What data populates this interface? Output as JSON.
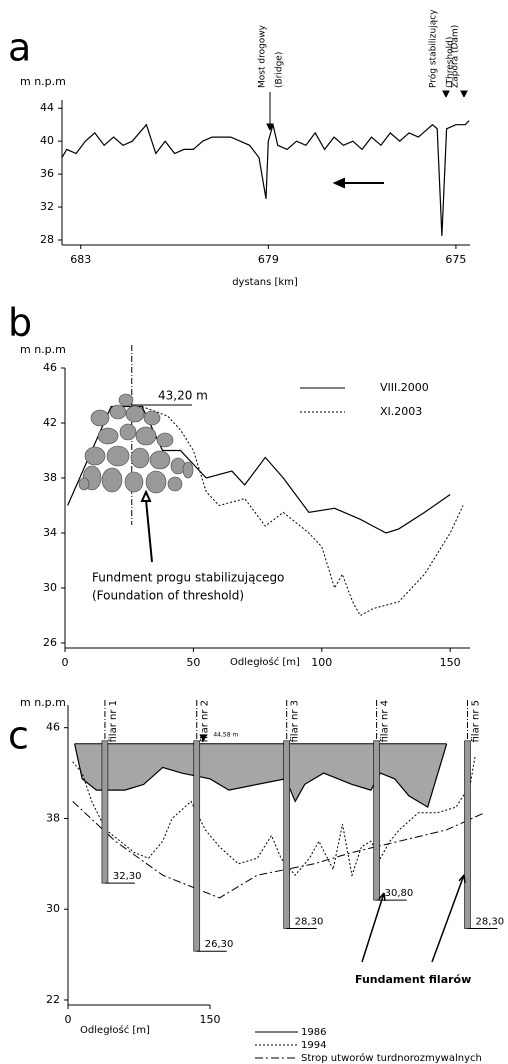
{
  "chart_data": [
    {
      "type": "line",
      "panel_label": "a",
      "y_label": "m  n.p.m",
      "x_label": "dystans  [km]",
      "xlim": [
        683.4,
        674.7
      ],
      "xticks": [
        683,
        679,
        675
      ],
      "ylim": [
        28,
        45
      ],
      "yticks": [
        28,
        32,
        36,
        40,
        44
      ],
      "annotations": [
        "Most drogowy",
        "(Bridge)",
        "Próg stabilizujący",
        "(Threshold)",
        "Zapora (Dam)"
      ],
      "series": [
        {
          "name": null,
          "color": "#000000",
          "style": "solid",
          "x": [
            683.4,
            683.3,
            683.1,
            682.9,
            682.7,
            682.5,
            682.3,
            682.1,
            681.9,
            681.6,
            681.4,
            681.2,
            681.0,
            680.8,
            680.6,
            680.4,
            680.2,
            680.0,
            679.8,
            679.6,
            679.4,
            679.2,
            679.05,
            679.0,
            678.9,
            678.8,
            678.6,
            678.4,
            678.2,
            678.0,
            677.8,
            677.6,
            677.4,
            677.2,
            677.0,
            676.8,
            676.6,
            676.4,
            676.2,
            676.0,
            675.8,
            675.6,
            675.5,
            675.4,
            675.3,
            675.2,
            675.0,
            674.8,
            674.72
          ],
          "values": [
            38,
            39,
            38.5,
            40,
            41,
            39.5,
            40.5,
            39.5,
            40,
            42,
            38.5,
            40,
            38.5,
            39,
            39,
            40,
            40.5,
            40.5,
            40.5,
            40,
            39.5,
            38,
            33,
            40,
            42,
            39.5,
            39,
            40,
            39.5,
            41,
            39,
            40.5,
            39.5,
            40,
            39,
            40.5,
            39.5,
            41,
            40,
            41,
            40.5,
            41.5,
            42,
            41.5,
            28.5,
            41.5,
            42,
            42,
            42.5
          ]
        }
      ]
    },
    {
      "type": "line",
      "panel_label": "b",
      "y_label": "m  n.p.m",
      "x_label": "Odległość [m]",
      "xlim": [
        0,
        155
      ],
      "xticks": [
        0,
        50,
        100,
        150
      ],
      "ylim": [
        26,
        46
      ],
      "yticks": [
        26,
        30,
        34,
        38,
        42,
        46
      ],
      "annotations": [
        "43,20 m",
        "Fundment progu stabilizującego",
        "(Foundation of threshold)"
      ],
      "legend": "top-right",
      "series": [
        {
          "name": "VIII.2000",
          "color": "#000000",
          "style": "solid",
          "x": [
            1,
            18,
            30,
            38,
            45,
            55,
            65,
            70,
            78,
            85,
            95,
            105,
            115,
            125,
            130,
            140,
            150
          ],
          "values": [
            36,
            43.2,
            43.2,
            40,
            40,
            38,
            38.5,
            37.5,
            39.5,
            38,
            35.5,
            35.8,
            35,
            34,
            34.3,
            35.5,
            36.8
          ]
        },
        {
          "name": "XI.2003",
          "color": "#000000",
          "style": "dotted",
          "x": [
            30,
            40,
            45,
            50,
            55,
            60,
            70,
            78,
            85,
            95,
            100,
            105,
            108,
            112,
            115,
            120,
            130,
            140,
            150,
            155
          ],
          "values": [
            43.2,
            42.5,
            41.5,
            40,
            37,
            36,
            36.5,
            34.5,
            35.5,
            34,
            33,
            30,
            31,
            29,
            28,
            28.5,
            29,
            31,
            34,
            36
          ]
        }
      ]
    },
    {
      "type": "line",
      "panel_label": "c",
      "y_label": "m  n.p.m",
      "x_label": "Odległość [m]",
      "xlim": [
        0,
        450
      ],
      "xticks": [
        0,
        150
      ],
      "ylim": [
        22,
        48
      ],
      "yticks": [
        22,
        30,
        38,
        46
      ],
      "annotations": [
        "Fundament filarów"
      ],
      "legend": "bottom",
      "water_level": 44.58,
      "water_level_label": "44,58 m",
      "pillars": {
        "names": [
          "filar nr 1",
          "filar nr 2",
          "filar nr 3",
          "filar nr 4",
          "filar nr 5"
        ],
        "x": [
          39,
          136,
          231,
          326,
          422
        ],
        "bottoms": [
          32.3,
          26.3,
          28.3,
          30.8,
          28.3
        ],
        "bottom_labels": [
          "32,30",
          "26,30",
          "28,30",
          "30,80",
          "28,30"
        ]
      },
      "series": [
        {
          "name": "1986",
          "color": "#000000",
          "style": "solid",
          "fill": "#a6a6a6",
          "x": [
            7,
            15,
            30,
            60,
            80,
            100,
            120,
            150,
            170,
            200,
            230,
            240,
            250,
            270,
            300,
            320,
            330,
            345,
            360,
            380,
            400
          ],
          "values": [
            44.58,
            41.5,
            40.5,
            40.5,
            41,
            42.5,
            42,
            41.5,
            40.5,
            41,
            41.5,
            39.5,
            41,
            42,
            41,
            40.5,
            42,
            41.5,
            40,
            39,
            44.58
          ]
        },
        {
          "name": "1994",
          "color": "#000000",
          "style": "dotted",
          "x": [
            5,
            15,
            25,
            40,
            55,
            70,
            85,
            100,
            110,
            130,
            145,
            160,
            180,
            200,
            215,
            225,
            240,
            255,
            265,
            280,
            290,
            300,
            310,
            320,
            330,
            340,
            350,
            370,
            390,
            410,
            425,
            430
          ],
          "values": [
            43,
            42,
            39.5,
            37,
            36,
            35,
            34.5,
            36,
            38,
            39.5,
            37,
            35.5,
            34,
            34.5,
            36.5,
            34.5,
            33,
            34.5,
            36,
            33.5,
            37.5,
            33,
            35.5,
            36,
            34.5,
            36,
            37,
            38.5,
            38.5,
            39,
            41,
            43.5
          ]
        },
        {
          "name": "Strop utworów turdnorozmywalnych",
          "color": "#000000",
          "style": "dashdot",
          "x": [
            5,
            50,
            100,
            160,
            200,
            260,
            300,
            350,
            400,
            440
          ],
          "values": [
            39.5,
            36,
            33,
            31,
            33,
            34,
            35,
            36,
            37,
            38.5
          ]
        }
      ]
    }
  ]
}
